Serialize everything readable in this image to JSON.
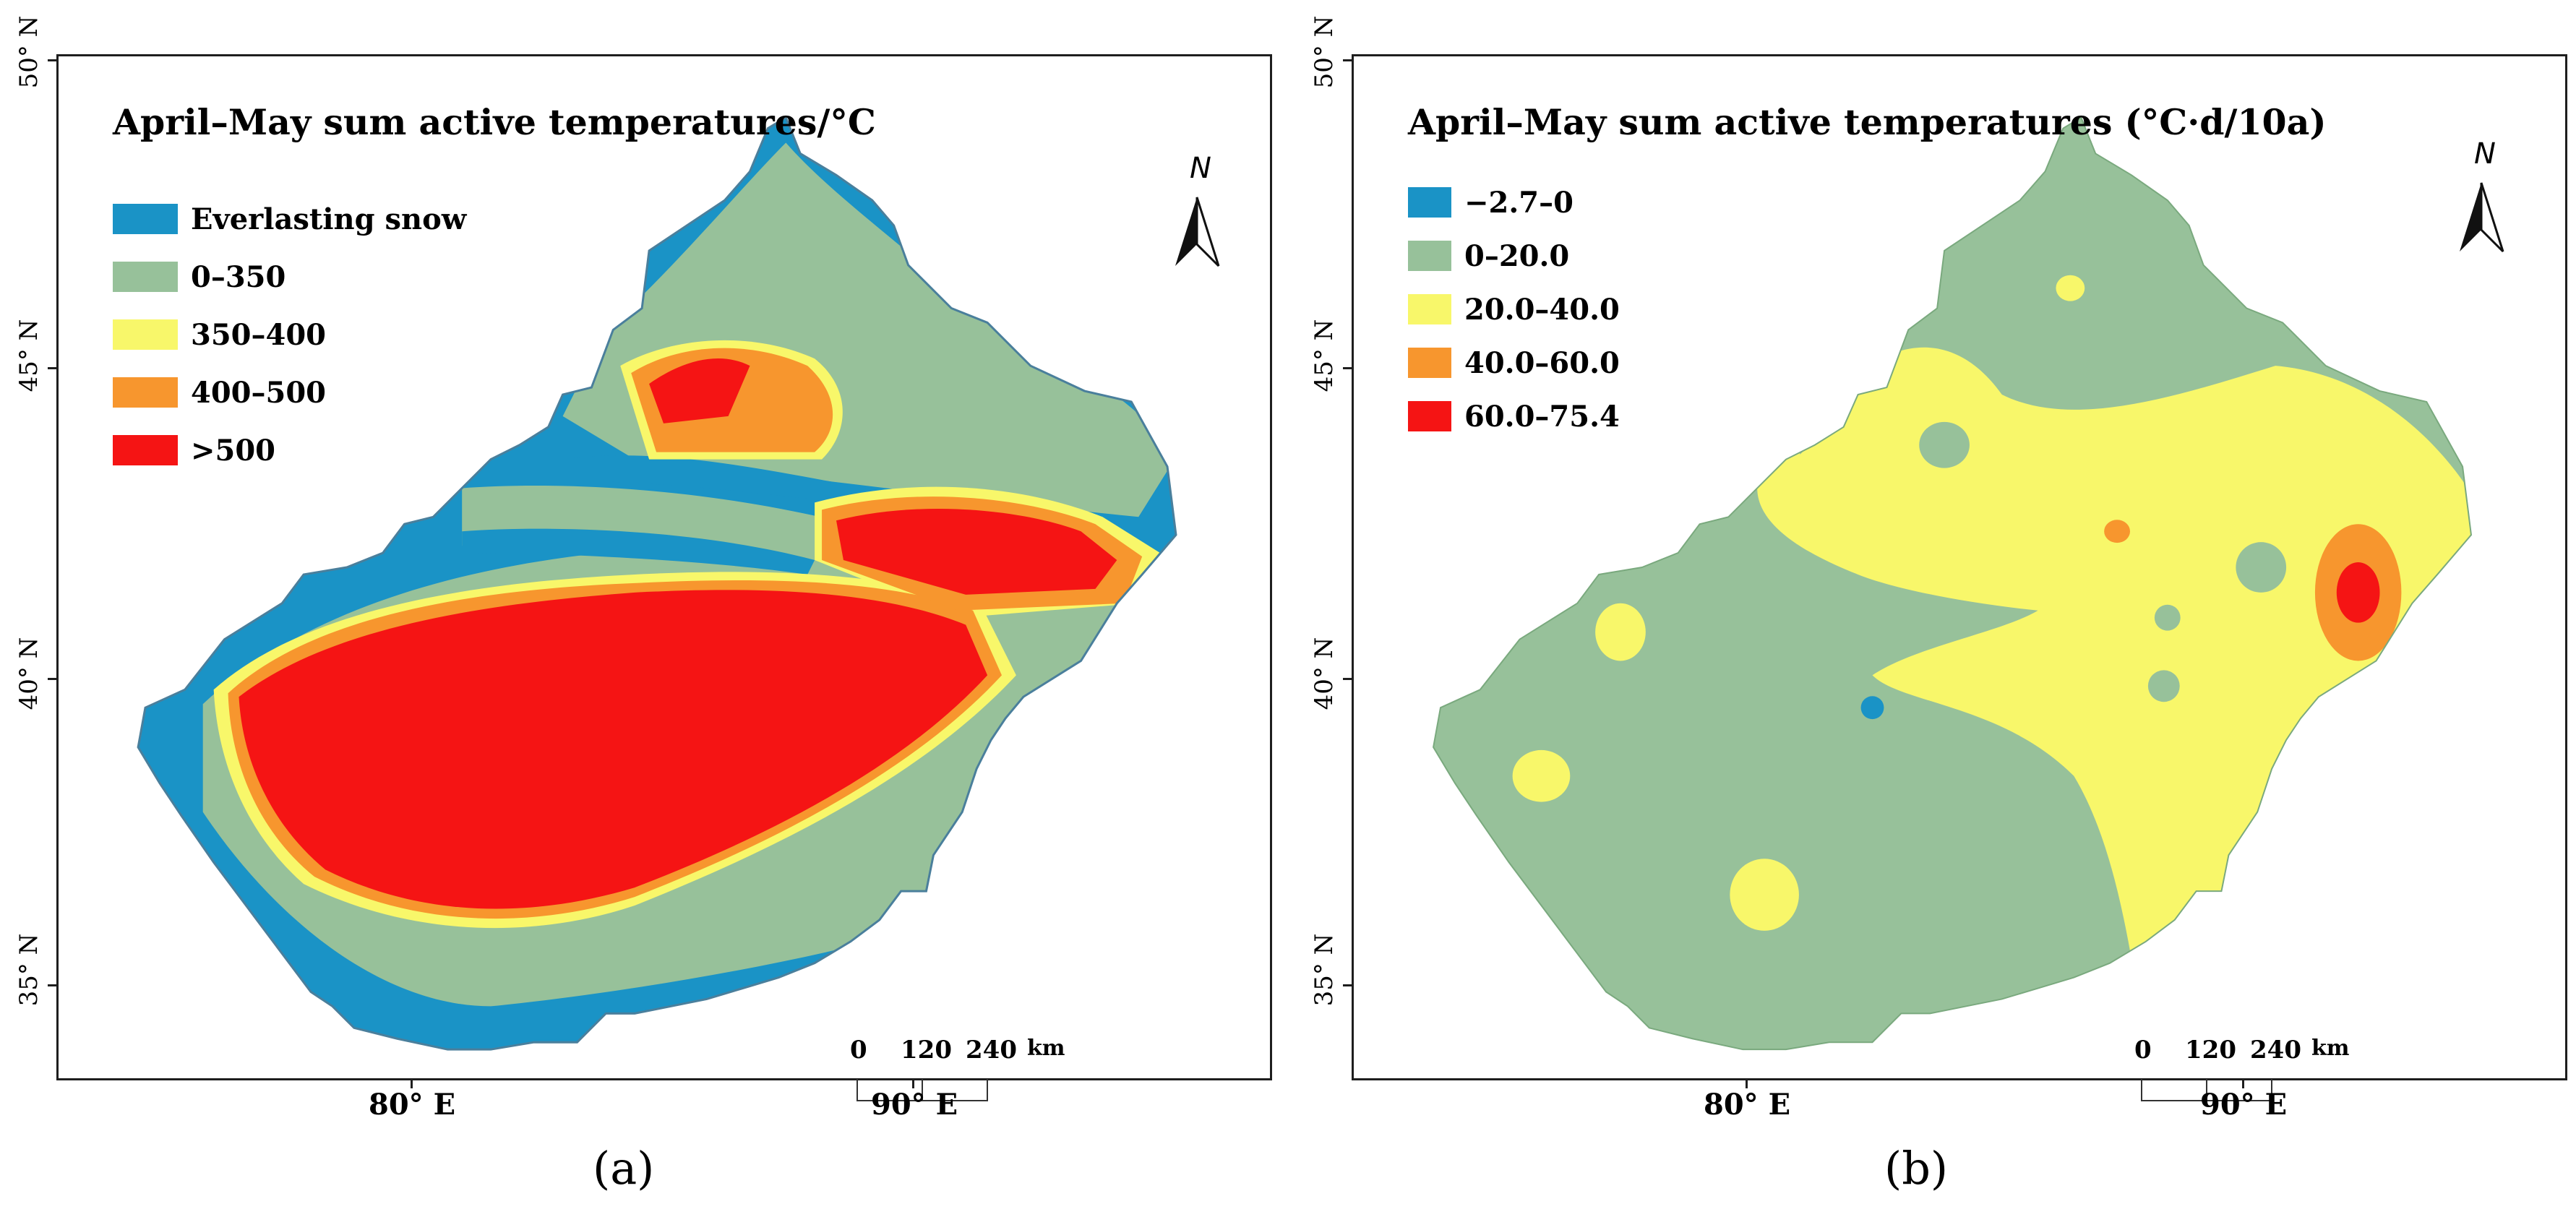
{
  "panels": [
    {
      "id": "a",
      "title": "April–May sum active temperatures/°C",
      "legend": [
        {
          "label": "Everlasting snow",
          "color": "#1a93c6"
        },
        {
          "label": "0–350",
          "color": "#97c19a"
        },
        {
          "label": "350–400",
          "color": "#f8f76a"
        },
        {
          "label": "400–500",
          "color": "#f7962e"
        },
        {
          "label": ">500",
          "color": "#f51414"
        }
      ],
      "lat_labels": [
        "50° N",
        "45° N",
        "40° N",
        "35° N"
      ],
      "lon_labels": [
        "80° E",
        "90° E"
      ],
      "north_letter": "N",
      "scale": {
        "ticks": [
          "0",
          "120",
          "240"
        ],
        "unit": "km"
      },
      "letter": "(a)"
    },
    {
      "id": "b",
      "title": "April–May sum active temperatures (°C·d/10a)",
      "legend": [
        {
          "label": "−2.7–0",
          "color": "#1a93c6"
        },
        {
          "label": "0–20.0",
          "color": "#97c19a"
        },
        {
          "label": "20.0–40.0",
          "color": "#f8f76a"
        },
        {
          "label": "40.0–60.0",
          "color": "#f7962e"
        },
        {
          "label": "60.0–75.4",
          "color": "#f51414"
        }
      ],
      "lat_labels": [
        "50° N",
        "45° N",
        "40° N",
        "35° N"
      ],
      "lon_labels": [
        "80° E",
        "90° E"
      ],
      "north_letter": "N",
      "scale": {
        "ticks": [
          "0",
          "120",
          "240"
        ],
        "unit": "km"
      },
      "letter": "(b)"
    }
  ]
}
